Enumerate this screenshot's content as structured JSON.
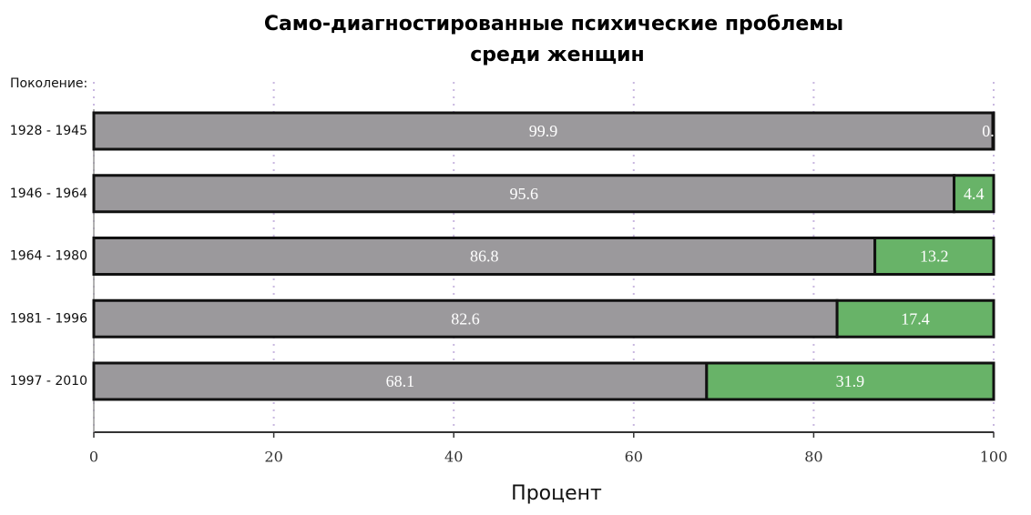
{
  "chart_data": {
    "type": "bar",
    "orientation": "horizontal",
    "stacked": true,
    "title": [
      "Само-диагностированные психические проблемы",
      "среди женщин"
    ],
    "y_label": "Поколение:",
    "x_label": "Процент",
    "categories": [
      "1928 - 1945",
      "1946 - 1964",
      "1964 - 1980",
      "1981 - 1996",
      "1997 - 2010"
    ],
    "series": [
      {
        "color": "#9b999c",
        "values": [
          99.9,
          95.6,
          86.8,
          82.6,
          68.1
        ]
      },
      {
        "color": "#68b368",
        "values": [
          0.1,
          4.4,
          13.2,
          17.4,
          31.9
        ],
        "value_labels": [
          "0.",
          "4.4",
          "13.2",
          "17.4",
          "31.9"
        ]
      }
    ],
    "xlim": [
      0,
      100
    ],
    "xticks": [
      0,
      20,
      40,
      60,
      80,
      100
    ],
    "grid": true
  }
}
